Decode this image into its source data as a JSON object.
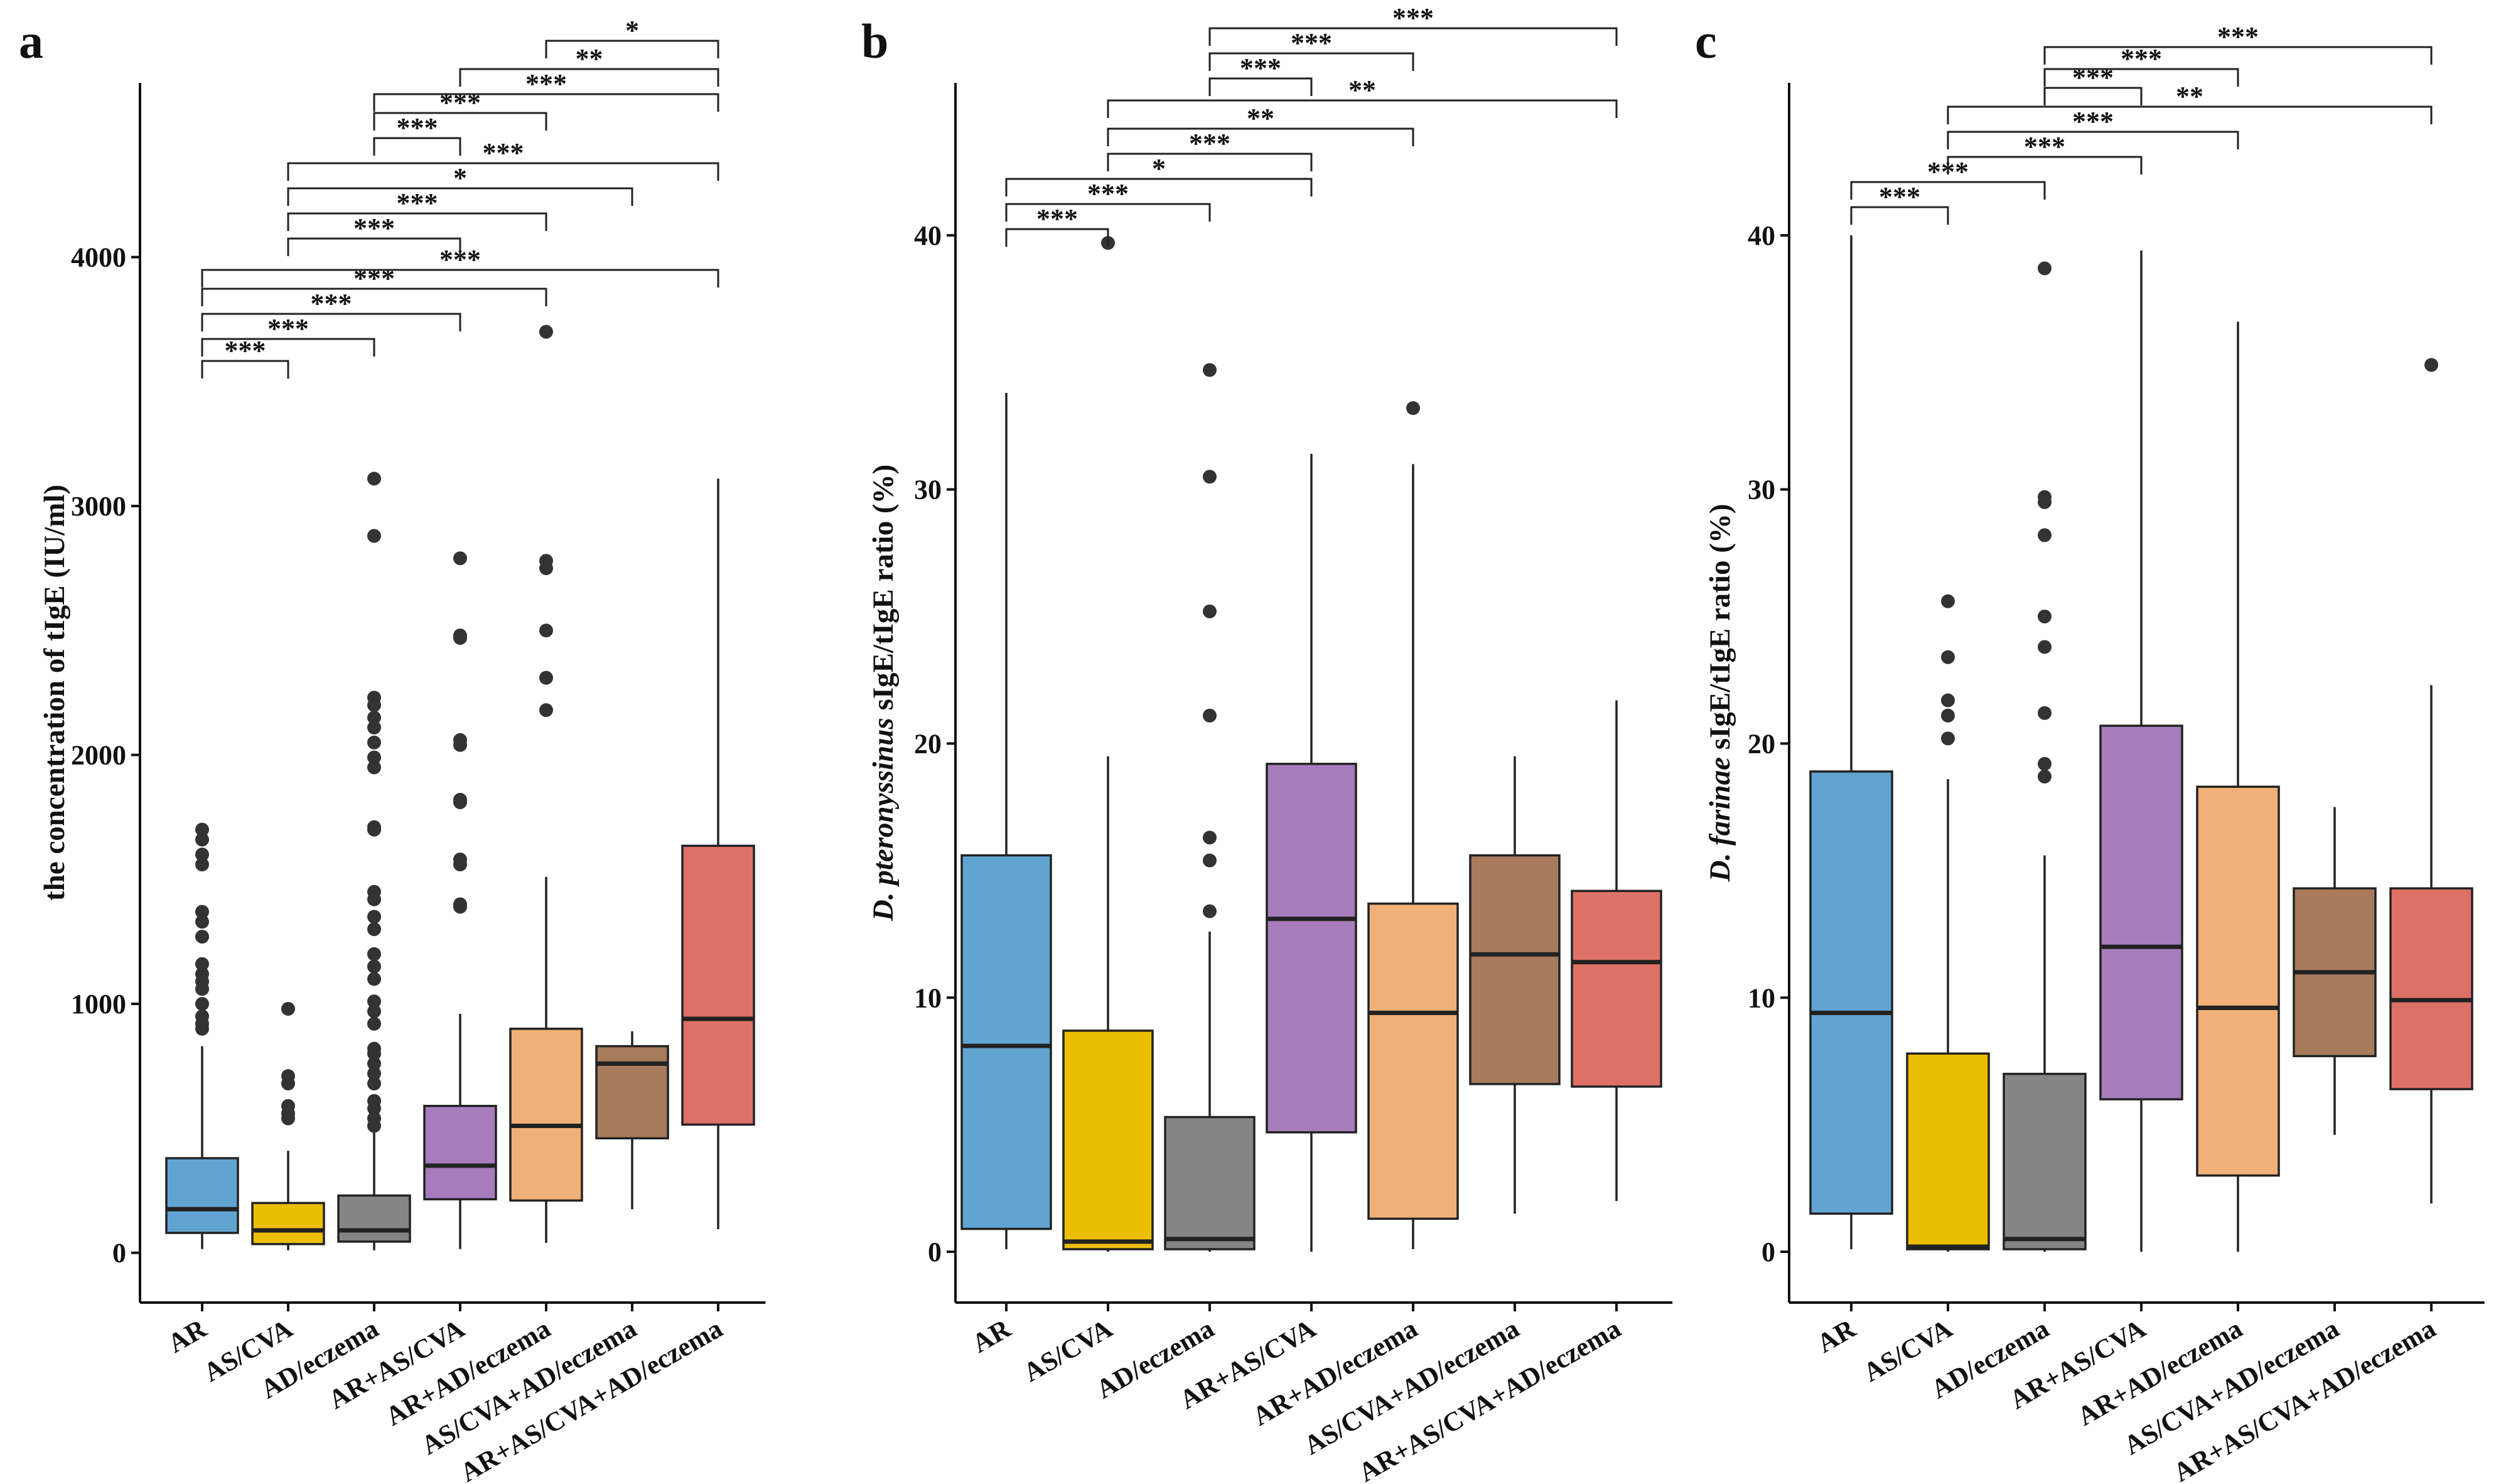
{
  "chart_data": [
    {
      "panel": "a",
      "type": "boxplot",
      "ylabel": "the concentration of tIgE (IU/ml)",
      "ylim": [
        -200,
        4700
      ],
      "yticks": [
        0,
        1000,
        2000,
        3000,
        4000
      ],
      "categories": [
        "AR",
        "AS/CVA",
        "AD/eczema",
        "AR+AS/CVA",
        "AR+AD/eczema",
        "AS/CVA+AD/eczema",
        "AR+AS/CVA+AD/eczema"
      ],
      "colors": [
        "#62a4d1",
        "#ecbe00",
        "#858585",
        "#a77cbc",
        "#f0b077",
        "#a77b5b",
        "#de7167"
      ],
      "boxes": [
        {
          "whisker_low": 15,
          "q1": 80,
          "median": 175,
          "q3": 380,
          "whisker_high": 830
        },
        {
          "whisker_low": 10,
          "q1": 35,
          "median": 90,
          "q3": 200,
          "whisker_high": 410
        },
        {
          "whisker_low": 10,
          "q1": 45,
          "median": 90,
          "q3": 230,
          "whisker_high": 500
        },
        {
          "whisker_low": 15,
          "q1": 215,
          "median": 350,
          "q3": 590,
          "whisker_high": 960
        },
        {
          "whisker_low": 40,
          "q1": 210,
          "median": 510,
          "q3": 900,
          "whisker_high": 1510
        },
        {
          "whisker_low": 175,
          "q1": 460,
          "median": 760,
          "q3": 830,
          "whisker_high": 890
        },
        {
          "whisker_low": 95,
          "q1": 515,
          "median": 940,
          "q3": 1635,
          "whisker_high": 3110
        }
      ],
      "outliers": [
        [
          1700,
          1660,
          1600,
          1560,
          1370,
          1330,
          1270,
          1160,
          1120,
          1090,
          1060,
          1000,
          950,
          920,
          900
        ],
        [
          980,
          710,
          680,
          590,
          560,
          540
        ],
        [
          3110,
          2880,
          2230,
          2200,
          2150,
          2110,
          2050,
          1990,
          1950,
          1710,
          1700,
          1450,
          1420,
          1350,
          1300,
          1200,
          1150,
          1100,
          1010,
          970,
          920,
          820,
          800,
          760,
          720,
          680,
          610,
          580,
          540,
          510
        ],
        [
          2790,
          2480,
          2470,
          2060,
          2040,
          1820,
          1810,
          1580,
          1560,
          1400,
          1390
        ],
        [
          3700,
          2780,
          2750,
          2500,
          2310,
          2180
        ],
        [],
        []
      ],
      "comparisons": [
        {
          "from": 1,
          "to": 2,
          "label": "***"
        },
        {
          "from": 1,
          "to": 3,
          "label": "***"
        },
        {
          "from": 1,
          "to": 4,
          "label": "***"
        },
        {
          "from": 1,
          "to": 5,
          "label": "***"
        },
        {
          "from": 1,
          "to": 7,
          "label": "***"
        },
        {
          "from": 2,
          "to": 4,
          "label": "***"
        },
        {
          "from": 2,
          "to": 5,
          "label": "***"
        },
        {
          "from": 2,
          "to": 6,
          "label": "*"
        },
        {
          "from": 2,
          "to": 7,
          "label": "***"
        },
        {
          "from": 3,
          "to": 4,
          "label": "***"
        },
        {
          "from": 3,
          "to": 5,
          "label": "***"
        },
        {
          "from": 3,
          "to": 7,
          "label": "***"
        },
        {
          "from": 4,
          "to": 7,
          "label": "**"
        },
        {
          "from": 5,
          "to": 7,
          "label": "*"
        }
      ]
    },
    {
      "panel": "b",
      "type": "boxplot",
      "ylabel_italic": "D. pteronyssinus",
      "ylabel_rest": " sIgE/tIgE ratio (%)",
      "ylim": [
        -2,
        46
      ],
      "yticks": [
        0,
        10,
        20,
        30,
        40
      ],
      "categories": [
        "AR",
        "AS/CVA",
        "AD/eczema",
        "AR+AS/CVA",
        "AR+AD/eczema",
        "AS/CVA+AD/eczema",
        "AR+AS/CVA+AD/eczema"
      ],
      "colors": [
        "#62a4d1",
        "#ecbe00",
        "#858585",
        "#a77cbc",
        "#f0b077",
        "#a77b5b",
        "#de7167"
      ],
      "boxes": [
        {
          "whisker_low": 0.1,
          "q1": 0.9,
          "median": 8.1,
          "q3": 15.6,
          "whisker_high": 33.8
        },
        {
          "whisker_low": 0.0,
          "q1": 0.1,
          "median": 0.4,
          "q3": 8.7,
          "whisker_high": 19.5
        },
        {
          "whisker_low": 0.0,
          "q1": 0.1,
          "median": 0.5,
          "q3": 5.3,
          "whisker_high": 12.6
        },
        {
          "whisker_low": 0.0,
          "q1": 4.7,
          "median": 13.1,
          "q3": 19.2,
          "whisker_high": 31.4
        },
        {
          "whisker_low": 0.1,
          "q1": 1.3,
          "median": 9.4,
          "q3": 13.7,
          "whisker_high": 31.0
        },
        {
          "whisker_low": 1.5,
          "q1": 6.6,
          "median": 11.7,
          "q3": 15.6,
          "whisker_high": 19.5
        },
        {
          "whisker_low": 2.0,
          "q1": 6.5,
          "median": 11.4,
          "q3": 14.2,
          "whisker_high": 21.7
        }
      ],
      "outliers": [
        [],
        [
          39.7
        ],
        [
          34.7,
          30.5,
          25.2,
          21.1,
          16.3,
          15.4,
          13.4
        ],
        [],
        [
          33.2
        ],
        [],
        []
      ],
      "comparisons": [
        {
          "from": 1,
          "to": 2,
          "label": "***"
        },
        {
          "from": 1,
          "to": 3,
          "label": "***"
        },
        {
          "from": 1,
          "to": 4,
          "label": "*"
        },
        {
          "from": 2,
          "to": 4,
          "label": "***"
        },
        {
          "from": 2,
          "to": 5,
          "label": "**"
        },
        {
          "from": 2,
          "to": 7,
          "label": "**"
        },
        {
          "from": 3,
          "to": 4,
          "label": "***"
        },
        {
          "from": 3,
          "to": 5,
          "label": "***"
        },
        {
          "from": 3,
          "to": 7,
          "label": "***"
        }
      ]
    },
    {
      "panel": "c",
      "type": "boxplot",
      "ylabel_italic": "D. farinae",
      "ylabel_rest": " sIgE/tIgE ratio (%)",
      "ylim": [
        -2,
        46
      ],
      "yticks": [
        0,
        10,
        20,
        30,
        40
      ],
      "categories": [
        "AR",
        "AS/CVA",
        "AD/eczema",
        "AR+AS/CVA",
        "AR+AD/eczema",
        "AS/CVA+AD/eczema",
        "AR+AS/CVA+AD/eczema"
      ],
      "colors": [
        "#62a4d1",
        "#ecbe00",
        "#858585",
        "#a77cbc",
        "#f0b077",
        "#a77b5b",
        "#de7167"
      ],
      "boxes": [
        {
          "whisker_low": 0.1,
          "q1": 1.5,
          "median": 9.4,
          "q3": 18.9,
          "whisker_high": 40.0
        },
        {
          "whisker_low": 0.0,
          "q1": 0.1,
          "median": 0.2,
          "q3": 7.8,
          "whisker_high": 18.6
        },
        {
          "whisker_low": 0.0,
          "q1": 0.1,
          "median": 0.5,
          "q3": 7.0,
          "whisker_high": 15.6
        },
        {
          "whisker_low": 0.0,
          "q1": 6.0,
          "median": 12.0,
          "q3": 20.7,
          "whisker_high": 39.4
        },
        {
          "whisker_low": 0.0,
          "q1": 3.0,
          "median": 9.6,
          "q3": 18.3,
          "whisker_high": 36.6
        },
        {
          "whisker_low": 4.6,
          "q1": 7.7,
          "median": 11.0,
          "q3": 14.3,
          "whisker_high": 17.5
        },
        {
          "whisker_low": 1.9,
          "q1": 6.4,
          "median": 9.9,
          "q3": 14.3,
          "whisker_high": 22.3
        }
      ],
      "outliers": [
        [],
        [
          25.6,
          23.4,
          21.7,
          21.1,
          20.2
        ],
        [
          38.7,
          29.7,
          29.5,
          28.2,
          25.0,
          23.8,
          21.2,
          19.2,
          18.7
        ],
        [],
        [],
        [],
        [
          34.9
        ]
      ],
      "comparisons": [
        {
          "from": 1,
          "to": 2,
          "label": "***"
        },
        {
          "from": 1,
          "to": 3,
          "label": "***"
        },
        {
          "from": 2,
          "to": 4,
          "label": "***"
        },
        {
          "from": 2,
          "to": 5,
          "label": "***"
        },
        {
          "from": 2,
          "to": 7,
          "label": "**"
        },
        {
          "from": 3,
          "to": 4,
          "label": "***"
        },
        {
          "from": 3,
          "to": 5,
          "label": "***"
        },
        {
          "from": 3,
          "to": 7,
          "label": "***"
        }
      ]
    }
  ]
}
